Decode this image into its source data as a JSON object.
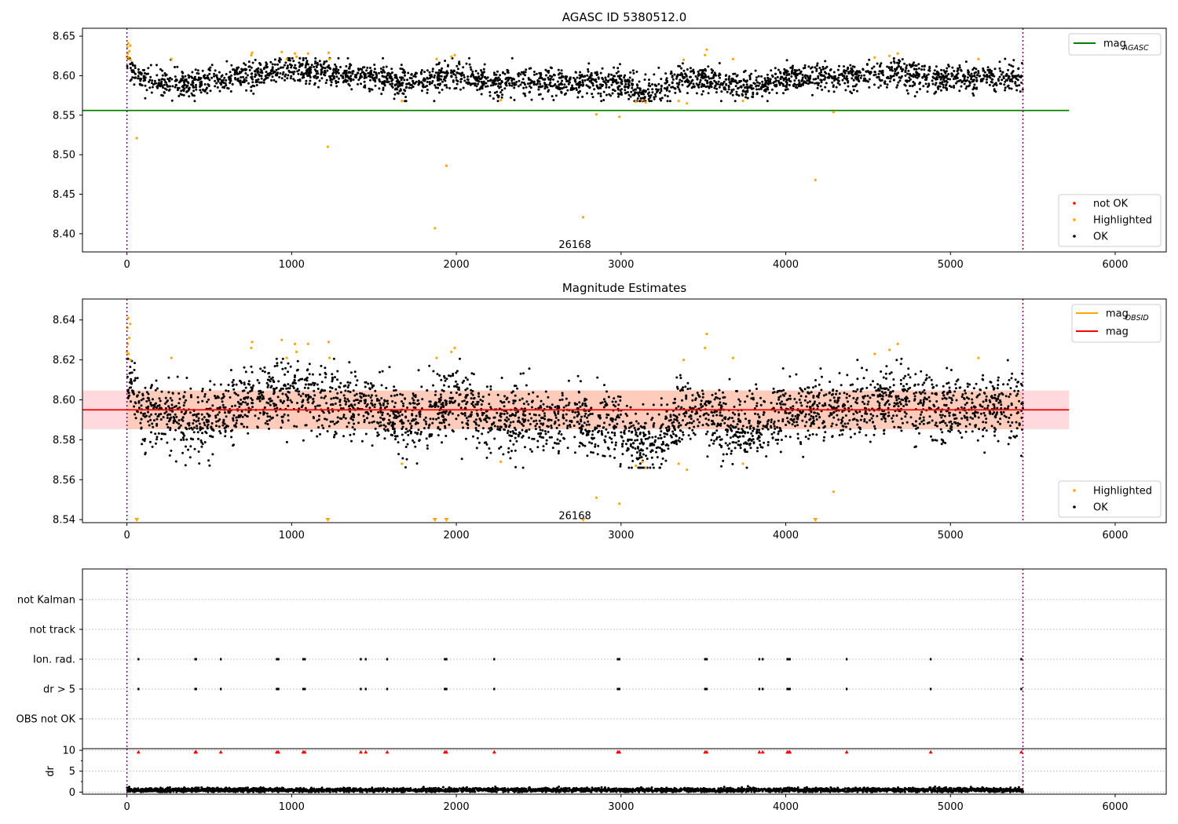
{
  "chart_data": [
    {
      "type": "scatter",
      "title": "AGASC ID 5380512.0",
      "xlim": [
        -270,
        6310
      ],
      "ylim": [
        8.377,
        8.66
      ],
      "xticks": [
        0,
        1000,
        2000,
        3000,
        4000,
        5000,
        6000
      ],
      "yticks": [
        8.4,
        8.45,
        8.5,
        8.55,
        8.6,
        8.65
      ],
      "x_range": [
        0,
        5440
      ],
      "vlines": [
        0,
        5440
      ],
      "hline": {
        "name": "mag",
        "name_sub": "AGASC",
        "y": 8.556,
        "x": [
          -270,
          5720
        ],
        "color": "#008000"
      },
      "annotation": {
        "text": "26168",
        "x": 2720,
        "y": 8.386
      },
      "legend_top": [
        {
          "label": "mag",
          "sub": "AGASC",
          "color": "#008000",
          "kind": "line"
        }
      ],
      "legend_bottom": [
        {
          "label": "not OK",
          "color": "#ff0000",
          "kind": "dot"
        },
        {
          "label": "Highlighted",
          "color": "#ffa500",
          "kind": "dot"
        },
        {
          "label": "OK",
          "color": "#000000",
          "kind": "dot"
        }
      ],
      "series": [
        {
          "name": "OK",
          "color": "#000000",
          "n": 2800,
          "x_range": [
            0,
            5440
          ],
          "baseline": 8.597,
          "scatter": 0.0085,
          "trend": [
            [
              0,
              8.61
            ],
            [
              100,
              8.595
            ],
            [
              400,
              8.588
            ],
            [
              800,
              8.604
            ],
            [
              1000,
              8.61
            ],
            [
              1200,
              8.604
            ],
            [
              1500,
              8.598
            ],
            [
              1700,
              8.59
            ],
            [
              2000,
              8.604
            ],
            [
              2200,
              8.592
            ],
            [
              2600,
              8.592
            ],
            [
              3000,
              8.59
            ],
            [
              3150,
              8.576
            ],
            [
              3400,
              8.598
            ],
            [
              3800,
              8.585
            ],
            [
              4000,
              8.598
            ],
            [
              4400,
              8.598
            ],
            [
              4700,
              8.603
            ],
            [
              5000,
              8.597
            ],
            [
              5440,
              8.598
            ]
          ]
        },
        {
          "name": "Highlighted",
          "color": "#ffa500",
          "points": [
            [
              0,
              8.624
            ],
            [
              3,
              8.636
            ],
            [
              5,
              8.628
            ],
            [
              8,
              8.641
            ],
            [
              10,
              8.623
            ],
            [
              15,
              8.631
            ],
            [
              20,
              8.638
            ],
            [
              22,
              8.62
            ],
            [
              60,
              8.521
            ],
            [
              270,
              8.621
            ],
            [
              755,
              8.626
            ],
            [
              760,
              8.629
            ],
            [
              940,
              8.63
            ],
            [
              970,
              8.621
            ],
            [
              1020,
              8.628
            ],
            [
              1030,
              8.624
            ],
            [
              1100,
              8.628
            ],
            [
              1220,
              8.51
            ],
            [
              1225,
              8.629
            ],
            [
              1230,
              8.621
            ],
            [
              1670,
              8.568
            ],
            [
              1870,
              8.407
            ],
            [
              1880,
              8.621
            ],
            [
              1940,
              8.486
            ],
            [
              1970,
              8.624
            ],
            [
              1990,
              8.626
            ],
            [
              2270,
              8.569
            ],
            [
              2770,
              8.421
            ],
            [
              2850,
              8.551
            ],
            [
              2990,
              8.548
            ],
            [
              3090,
              8.567
            ],
            [
              3130,
              8.569
            ],
            [
              3150,
              8.566
            ],
            [
              3350,
              8.568
            ],
            [
              3380,
              8.62
            ],
            [
              3400,
              8.565
            ],
            [
              3510,
              8.626
            ],
            [
              3520,
              8.633
            ],
            [
              3680,
              8.621
            ],
            [
              3740,
              8.568
            ],
            [
              4180,
              8.468
            ],
            [
              4290,
              8.554
            ],
            [
              4540,
              8.623
            ],
            [
              4630,
              8.625
            ],
            [
              4680,
              8.628
            ],
            [
              5170,
              8.621
            ]
          ]
        },
        {
          "name": "not OK",
          "color": "#ff0000",
          "points": []
        }
      ]
    },
    {
      "type": "scatter",
      "title": "Magnitude Estimates",
      "xlim": [
        -270,
        6310
      ],
      "ylim": [
        8.5385,
        8.6505
      ],
      "xticks": [
        0,
        1000,
        2000,
        3000,
        4000,
        5000,
        6000
      ],
      "yticks": [
        8.54,
        8.56,
        8.58,
        8.6,
        8.62,
        8.64
      ],
      "vlines": [
        0,
        5440
      ],
      "band_outer": {
        "y": [
          8.5853,
          8.6047
        ],
        "x": [
          -270,
          5720
        ],
        "color": "#ffd9de"
      },
      "band_inner": {
        "y": [
          8.5853,
          8.6047
        ],
        "x": [
          0,
          5440
        ],
        "color": "#ffcbba"
      },
      "hline_obsid": {
        "name": "mag",
        "name_sub": "OBSID",
        "y": 8.595,
        "x": [
          0,
          5440
        ],
        "color": "#ffa500"
      },
      "hline": {
        "name": "mag",
        "y": 8.595,
        "x": [
          -270,
          5720
        ],
        "color": "#ff0000"
      },
      "annotation": {
        "text": "26168",
        "x": 2720,
        "y": 8.5418
      },
      "legend_top": [
        {
          "label": "mag",
          "sub": "OBSID",
          "color": "#ffa500",
          "kind": "line"
        },
        {
          "label": "mag",
          "sub": "",
          "color": "#ff0000",
          "kind": "line"
        }
      ],
      "legend_bottom": [
        {
          "label": "Highlighted",
          "color": "#ffa500",
          "kind": "dot"
        },
        {
          "label": "OK",
          "color": "#000000",
          "kind": "dot"
        }
      ],
      "series": [
        {
          "name": "OK",
          "color": "#000000",
          "n": 3300,
          "x_range": [
            0,
            5440
          ],
          "baseline": 8.595,
          "scatter": 0.0085,
          "trend": [
            [
              0,
              8.615
            ],
            [
              100,
              8.595
            ],
            [
              400,
              8.588
            ],
            [
              800,
              8.6
            ],
            [
              1000,
              8.607
            ],
            [
              1200,
              8.6
            ],
            [
              1500,
              8.598
            ],
            [
              1700,
              8.588
            ],
            [
              2000,
              8.6
            ],
            [
              2200,
              8.59
            ],
            [
              2600,
              8.59
            ],
            [
              3000,
              8.588
            ],
            [
              3150,
              8.575
            ],
            [
              3400,
              8.596
            ],
            [
              3800,
              8.584
            ],
            [
              4000,
              8.595
            ],
            [
              4400,
              8.596
            ],
            [
              4700,
              8.6
            ],
            [
              5000,
              8.595
            ],
            [
              5440,
              8.596
            ]
          ]
        },
        {
          "name": "Highlighted",
          "color": "#ffa500",
          "points": [
            [
              0,
              8.624
            ],
            [
              3,
              8.636
            ],
            [
              5,
              8.628
            ],
            [
              8,
              8.641
            ],
            [
              10,
              8.623
            ],
            [
              15,
              8.631
            ],
            [
              20,
              8.638
            ],
            [
              22,
              8.62
            ],
            [
              270,
              8.621
            ],
            [
              755,
              8.626
            ],
            [
              760,
              8.629
            ],
            [
              940,
              8.63
            ],
            [
              970,
              8.621
            ],
            [
              1020,
              8.628
            ],
            [
              1030,
              8.624
            ],
            [
              1100,
              8.628
            ],
            [
              1225,
              8.629
            ],
            [
              1230,
              8.621
            ],
            [
              1670,
              8.568
            ],
            [
              1880,
              8.621
            ],
            [
              1970,
              8.624
            ],
            [
              1990,
              8.626
            ],
            [
              2270,
              8.569
            ],
            [
              2850,
              8.551
            ],
            [
              2990,
              8.548
            ],
            [
              3090,
              8.567
            ],
            [
              3130,
              8.569
            ],
            [
              3150,
              8.566
            ],
            [
              3350,
              8.568
            ],
            [
              3380,
              8.62
            ],
            [
              3400,
              8.565
            ],
            [
              3510,
              8.626
            ],
            [
              3520,
              8.633
            ],
            [
              3680,
              8.621
            ],
            [
              3740,
              8.568
            ],
            [
              4290,
              8.554
            ],
            [
              4540,
              8.623
            ],
            [
              4630,
              8.625
            ],
            [
              4680,
              8.628
            ],
            [
              5170,
              8.621
            ]
          ]
        },
        {
          "name": "Highlighted-offscale",
          "color": "#ffa500",
          "marker": "triangle-down",
          "points": [
            [
              60,
              8.54
            ],
            [
              1220,
              8.54
            ],
            [
              1870,
              8.54
            ],
            [
              1940,
              8.54
            ],
            [
              2770,
              8.54
            ],
            [
              4180,
              8.54
            ]
          ]
        }
      ]
    },
    {
      "type": "scatter",
      "xlim": [
        -270,
        6310
      ],
      "categories": [
        "not Kalman",
        "not track",
        "Ion. rad.",
        "dr > 5",
        "OBS not OK"
      ],
      "vlines": [
        0,
        5440
      ],
      "flag_events": [
        70,
        415,
        420,
        570,
        910,
        920,
        1070,
        1080,
        1420,
        1450,
        1580,
        1930,
        1940,
        2230,
        2980,
        2990,
        3510,
        3520,
        3840,
        3860,
        4010,
        4020,
        4025,
        4370,
        4880,
        5430
      ],
      "flags": {
        "Ion. rad.": "events",
        "dr > 5": "events"
      }
    },
    {
      "type": "scatter",
      "ylabel": "dr",
      "xlim": [
        -270,
        6310
      ],
      "ylim": [
        -0.5,
        10.4
      ],
      "yticks": [
        0,
        5,
        10
      ],
      "xticks": [
        0,
        1000,
        2000,
        3000,
        4000,
        5000,
        6000
      ],
      "vlines": [
        0,
        5440
      ],
      "series": [
        {
          "name": "dr",
          "color": "#000000",
          "n": 3300,
          "x_range": [
            0,
            5440
          ],
          "baseline": 0.5,
          "scatter": 0.25
        },
        {
          "name": "dr > 5",
          "color": "#ff0000",
          "marker": "triangle-up",
          "y": 9.6,
          "points_x": [
            70,
            415,
            420,
            570,
            910,
            920,
            1070,
            1080,
            1420,
            1450,
            1580,
            1930,
            1940,
            2230,
            2980,
            2990,
            3510,
            3520,
            3840,
            3860,
            4010,
            4020,
            4025,
            4370,
            4880,
            5430
          ]
        }
      ]
    }
  ]
}
